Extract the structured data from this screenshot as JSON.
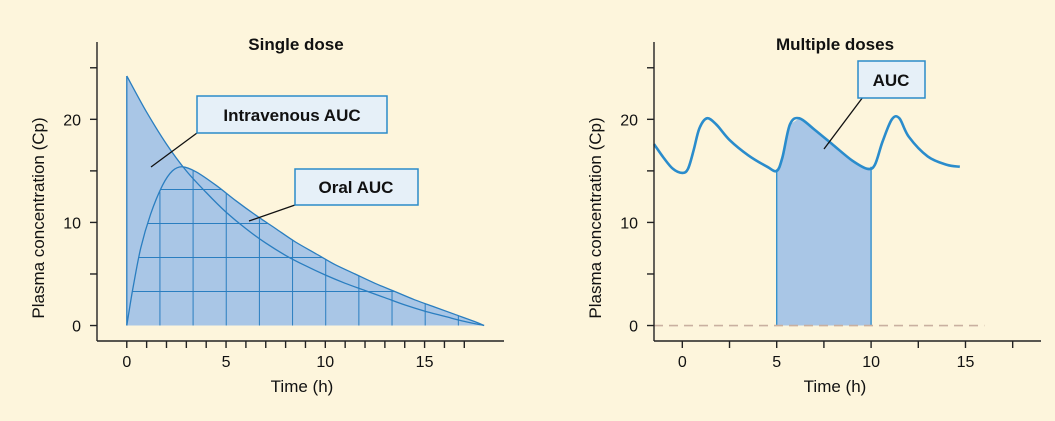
{
  "colors": {
    "background": "#fdf5dc",
    "area_fill": "#a9c6e6",
    "curve": "#2a8ccc",
    "grid": "#2a7ec0",
    "callout_fill": "#e6f0f8",
    "callout_stroke": "#2b8bc9",
    "baseline_dashed": "#c9b0a0"
  },
  "chart_data": [
    {
      "type": "area",
      "title": "Single dose",
      "xlabel": "Time (h)",
      "ylabel": "Plasma concentration (Cp)",
      "xlim": [
        -1.5,
        19
      ],
      "ylim": [
        -1.5,
        27.5
      ],
      "x_ticks": [
        0,
        5,
        10,
        15
      ],
      "x_minor_ticks": [
        0,
        1,
        2,
        3,
        4,
        5,
        6,
        7,
        8,
        9,
        10,
        11,
        12,
        13,
        14,
        15,
        16,
        17
      ],
      "y_ticks": [
        0,
        10,
        20
      ],
      "y_minor_ticks": [
        0,
        5,
        10,
        15,
        20,
        25
      ],
      "series": [
        {
          "name": "Intravenous AUC",
          "x": [
            0,
            1,
            2,
            3,
            4,
            5,
            6,
            7,
            8,
            9,
            10,
            11,
            12,
            13,
            14,
            15,
            16,
            17,
            18
          ],
          "y": [
            24.2,
            20.7,
            17.6,
            15.0,
            12.9,
            11.0,
            9.4,
            8.0,
            6.8,
            5.8,
            4.9,
            4.1,
            3.4,
            2.7,
            2.0,
            1.4,
            0.9,
            0.4,
            0
          ]
        },
        {
          "name": "Oral AUC",
          "x": [
            0,
            0.3,
            0.7,
            1.2,
            1.8,
            2.3,
            2.8,
            3.5,
            4.5,
            5.5,
            6.5,
            7.5,
            8.5,
            9.5,
            10.5,
            11.5,
            12.5,
            13.5,
            14.5,
            15.5,
            16.5,
            17.5,
            18
          ],
          "y": [
            0,
            3.5,
            7.5,
            10.8,
            13.6,
            15.0,
            15.4,
            14.9,
            13.6,
            12.1,
            10.7,
            9.4,
            8.1,
            7.0,
            5.9,
            5.0,
            4.1,
            3.3,
            2.5,
            1.8,
            1.1,
            0.4,
            0
          ]
        }
      ],
      "grid_overlay": {
        "x_step": 1.67,
        "y_step": 3.3
      },
      "annotations": [
        "Intravenous AUC",
        "Oral AUC"
      ]
    },
    {
      "type": "line",
      "title": "Multiple doses",
      "xlabel": "Time (h)",
      "ylabel": "Plasma concentration (Cp)",
      "xlim": [
        -1.5,
        19
      ],
      "ylim": [
        -1.5,
        27.5
      ],
      "x_ticks": [
        0,
        5,
        10,
        15
      ],
      "x_minor_ticks": [
        0,
        2.5,
        5,
        7.5,
        10,
        12.5,
        15,
        17.5
      ],
      "y_ticks": [
        0,
        10,
        20
      ],
      "y_minor_ticks": [
        0,
        5,
        10,
        15,
        20,
        25
      ],
      "series": [
        {
          "name": "",
          "x": [
            -1.5,
            -1.0,
            -0.5,
            0.0,
            0.3,
            0.6,
            0.9,
            1.3,
            1.8,
            2.5,
            3.5,
            4.5,
            5.0,
            5.3,
            5.7,
            6.2,
            7.0,
            8.0,
            9.0,
            9.8,
            10.2,
            10.6,
            11.1,
            11.5,
            12.0,
            13.0,
            14.0,
            14.7
          ],
          "y": [
            17.6,
            16.3,
            15.2,
            14.8,
            15.2,
            17.0,
            19.1,
            20.1,
            19.5,
            18.0,
            16.5,
            15.4,
            15.0,
            16.3,
            19.5,
            20.1,
            19.0,
            17.5,
            16.0,
            15.2,
            15.6,
            17.8,
            20.0,
            20.1,
            18.3,
            16.4,
            15.6,
            15.4
          ]
        }
      ],
      "shaded_interval": [
        5,
        10
      ],
      "baseline": 0,
      "annotations": [
        "AUC"
      ]
    }
  ]
}
